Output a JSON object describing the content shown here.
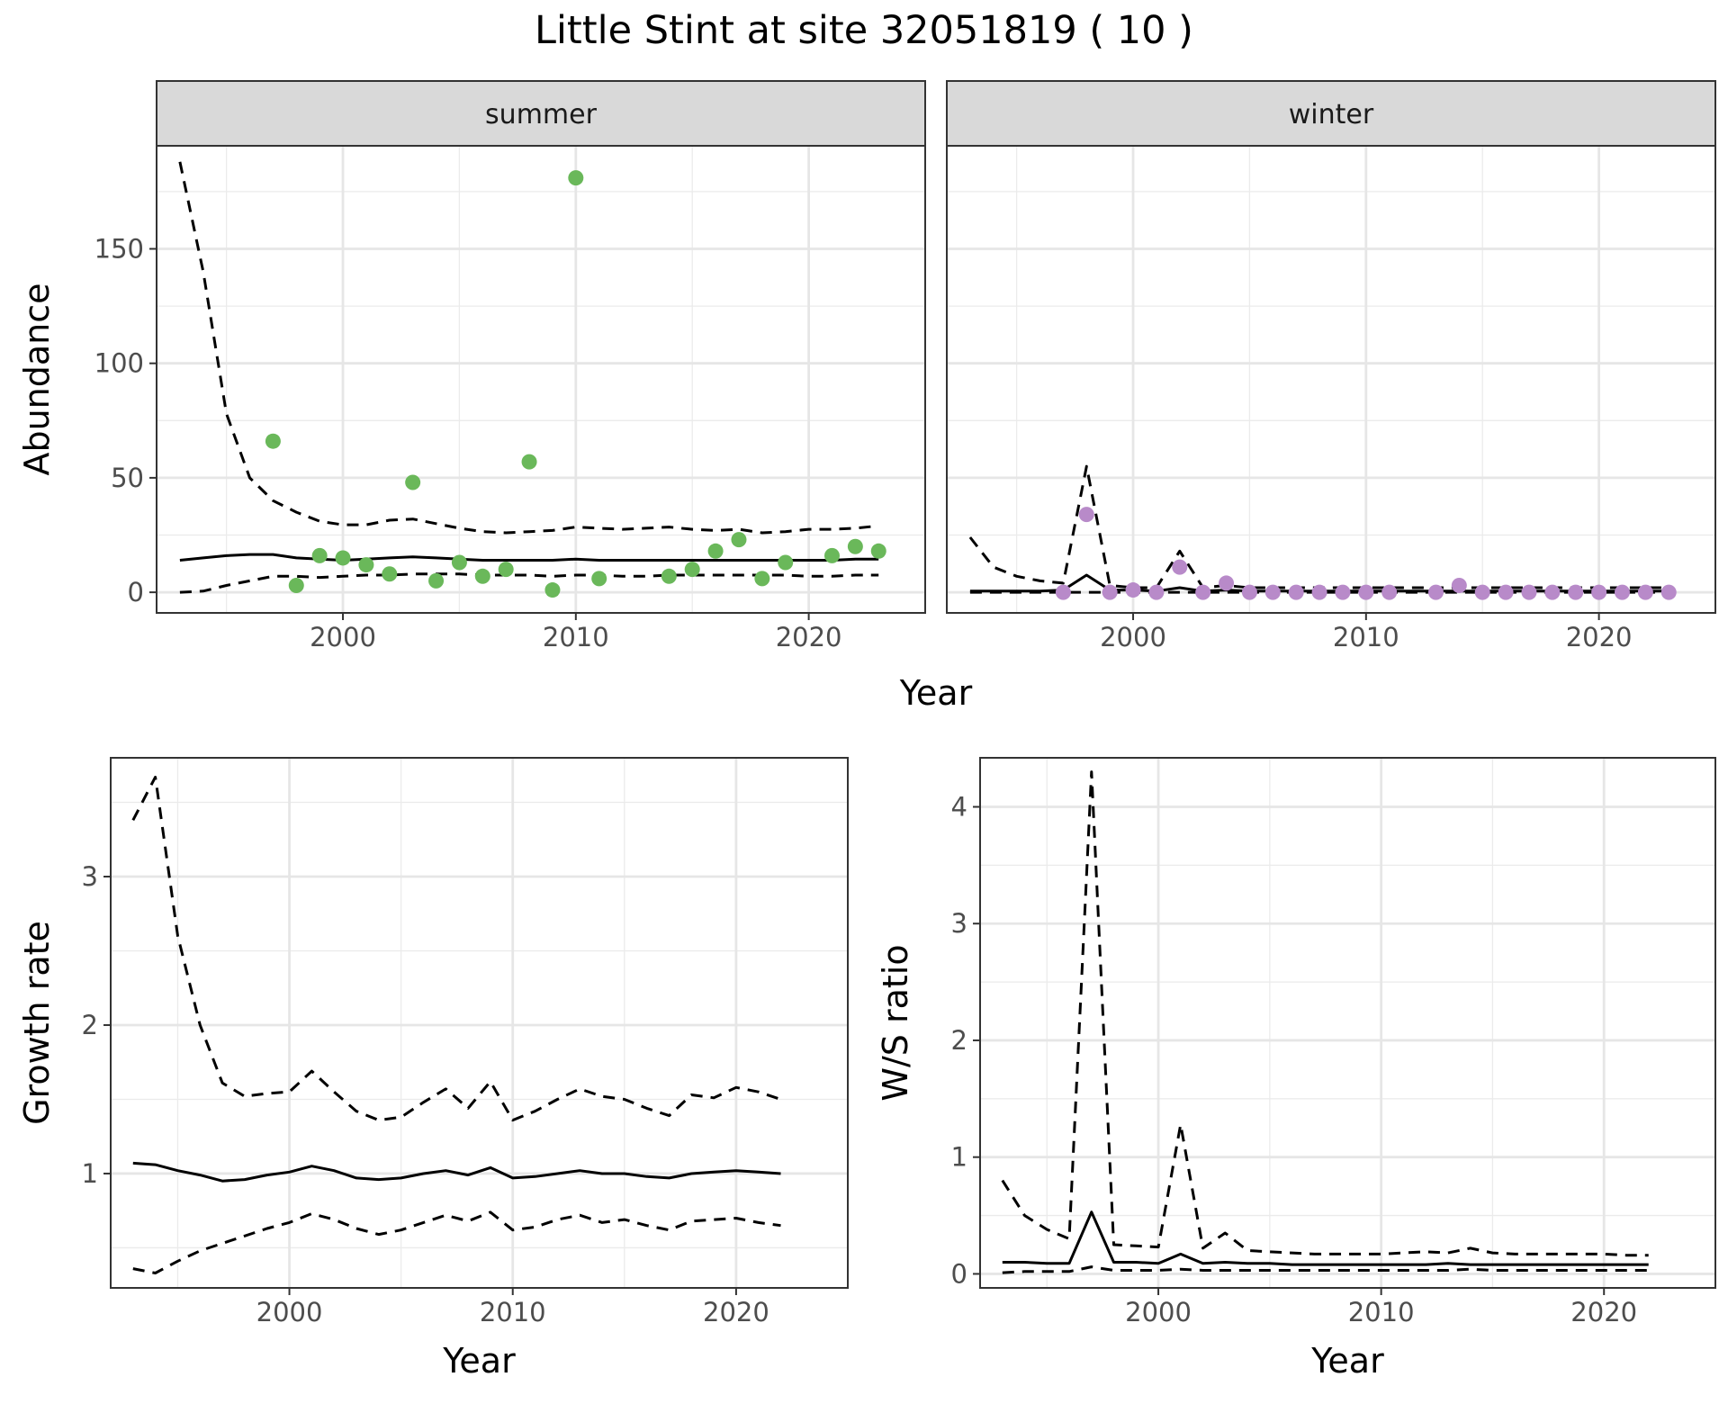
{
  "figure": {
    "title": "Little Stint at site 32051819 ( 10 )"
  },
  "chart_data": [
    {
      "type": "line",
      "panel": "summer",
      "facet_label": "summer",
      "xlabel": "Year",
      "ylabel": "Abundance",
      "xlim": [
        1992,
        2025
      ],
      "ylim": [
        -9,
        195
      ],
      "xticks": [
        2000,
        2010,
        2020
      ],
      "yticks": [
        0,
        50,
        100,
        150
      ],
      "grid": true,
      "point_color": "#6ab85a",
      "x": [
        1993,
        1994,
        1995,
        1996,
        1997,
        1998,
        1999,
        2000,
        2001,
        2002,
        2003,
        2004,
        2005,
        2006,
        2007,
        2008,
        2009,
        2010,
        2011,
        2012,
        2013,
        2014,
        2015,
        2016,
        2017,
        2018,
        2019,
        2020,
        2021,
        2022,
        2023
      ],
      "series": [
        {
          "style": "solid",
          "values": [
            14,
            15,
            16,
            16.5,
            16.5,
            15,
            14.5,
            14,
            14.5,
            15,
            15.5,
            15,
            14.5,
            14,
            14,
            14,
            14,
            14.5,
            14,
            14,
            14,
            14,
            14,
            14,
            14,
            14,
            14,
            14,
            14,
            14.5,
            14.5
          ]
        },
        {
          "style": "dashed",
          "values": [
            188,
            140,
            78,
            50,
            40,
            35,
            31,
            29.5,
            29.5,
            31.5,
            32,
            30,
            28,
            26.5,
            26,
            26.5,
            27,
            28.5,
            28,
            27.5,
            28,
            28.5,
            27.5,
            27,
            27.5,
            26,
            26.5,
            27.5,
            27.5,
            28,
            29
          ]
        },
        {
          "style": "dashed",
          "values": [
            0,
            0.5,
            3,
            5,
            7,
            7,
            6.5,
            7,
            7.5,
            7.5,
            8,
            8,
            8,
            7.5,
            7.5,
            7.5,
            7,
            7.5,
            7.5,
            7,
            7,
            7.5,
            7.5,
            7.5,
            7.5,
            7.5,
            7.5,
            7,
            7,
            7.5,
            7.5
          ]
        }
      ],
      "points": [
        {
          "x": 1997,
          "y": 66
        },
        {
          "x": 1998,
          "y": 3
        },
        {
          "x": 1999,
          "y": 16
        },
        {
          "x": 2000,
          "y": 15
        },
        {
          "x": 2001,
          "y": 12
        },
        {
          "x": 2002,
          "y": 8
        },
        {
          "x": 2003,
          "y": 48
        },
        {
          "x": 2004,
          "y": 5
        },
        {
          "x": 2005,
          "y": 13
        },
        {
          "x": 2006,
          "y": 7
        },
        {
          "x": 2007,
          "y": 10
        },
        {
          "x": 2008,
          "y": 57
        },
        {
          "x": 2009,
          "y": 1
        },
        {
          "x": 2010,
          "y": 181
        },
        {
          "x": 2011,
          "y": 6
        },
        {
          "x": 2014,
          "y": 7
        },
        {
          "x": 2015,
          "y": 10
        },
        {
          "x": 2016,
          "y": 18
        },
        {
          "x": 2017,
          "y": 23
        },
        {
          "x": 2018,
          "y": 6
        },
        {
          "x": 2019,
          "y": 13
        },
        {
          "x": 2021,
          "y": 16
        },
        {
          "x": 2022,
          "y": 20
        },
        {
          "x": 2023,
          "y": 18
        }
      ]
    },
    {
      "type": "line",
      "panel": "winter",
      "facet_label": "winter",
      "xlabel": "Year",
      "ylabel": "Abundance",
      "xlim": [
        1992,
        2025
      ],
      "ylim": [
        -9,
        195
      ],
      "xticks": [
        2000,
        2010,
        2020
      ],
      "yticks": [
        0,
        50,
        100,
        150
      ],
      "grid": true,
      "point_color": "#b88ac9",
      "x": [
        1993,
        1994,
        1995,
        1996,
        1997,
        1998,
        1999,
        2000,
        2001,
        2002,
        2003,
        2004,
        2005,
        2006,
        2007,
        2008,
        2009,
        2010,
        2011,
        2012,
        2013,
        2014,
        2015,
        2016,
        2017,
        2018,
        2019,
        2020,
        2021,
        2022,
        2023
      ],
      "series": [
        {
          "style": "solid",
          "values": [
            0.5,
            0.5,
            0.5,
            0.5,
            1,
            7.5,
            1,
            1,
            0.5,
            2,
            0.5,
            1,
            0.5,
            0.5,
            0.5,
            0.5,
            0.5,
            0.5,
            0.5,
            0.5,
            0.5,
            0.5,
            0.5,
            0.5,
            0.5,
            0.5,
            0.5,
            0.5,
            0.5,
            0.5,
            0.5
          ]
        },
        {
          "style": "dashed",
          "values": [
            24,
            11,
            7,
            5,
            4,
            55,
            3,
            2,
            2,
            18,
            2,
            3,
            2,
            2,
            2,
            2,
            2,
            2,
            2,
            2,
            2,
            2,
            2,
            2,
            2,
            2,
            2,
            2,
            2,
            2,
            2
          ]
        },
        {
          "style": "dashed",
          "values": [
            0,
            0,
            0,
            0,
            0,
            0,
            0,
            0,
            0,
            0,
            0,
            0,
            0,
            0,
            0,
            0,
            0,
            0,
            0,
            0,
            0,
            0,
            0,
            0,
            0,
            0,
            0,
            0,
            0,
            0,
            0
          ]
        }
      ],
      "points": [
        {
          "x": 1997,
          "y": 0
        },
        {
          "x": 1998,
          "y": 34
        },
        {
          "x": 1999,
          "y": 0
        },
        {
          "x": 2000,
          "y": 1
        },
        {
          "x": 2001,
          "y": 0
        },
        {
          "x": 2002,
          "y": 11
        },
        {
          "x": 2003,
          "y": 0
        },
        {
          "x": 2004,
          "y": 4
        },
        {
          "x": 2005,
          "y": 0
        },
        {
          "x": 2006,
          "y": 0
        },
        {
          "x": 2007,
          "y": 0
        },
        {
          "x": 2008,
          "y": 0
        },
        {
          "x": 2009,
          "y": 0
        },
        {
          "x": 2010,
          "y": 0
        },
        {
          "x": 2011,
          "y": 0
        },
        {
          "x": 2013,
          "y": 0
        },
        {
          "x": 2014,
          "y": 3
        },
        {
          "x": 2015,
          "y": 0
        },
        {
          "x": 2016,
          "y": 0
        },
        {
          "x": 2017,
          "y": 0
        },
        {
          "x": 2018,
          "y": 0
        },
        {
          "x": 2019,
          "y": 0
        },
        {
          "x": 2020,
          "y": 0
        },
        {
          "x": 2021,
          "y": 0
        },
        {
          "x": 2022,
          "y": 0
        },
        {
          "x": 2023,
          "y": 0
        }
      ]
    },
    {
      "type": "line",
      "panel": "growth",
      "xlabel": "Year",
      "ylabel": "Growth rate",
      "xlim": [
        1992,
        2025
      ],
      "ylim": [
        0.23,
        3.8
      ],
      "xticks": [
        2000,
        2010,
        2020
      ],
      "yticks": [
        1,
        2,
        3
      ],
      "grid": true,
      "x": [
        1993,
        1994,
        1995,
        1996,
        1997,
        1998,
        1999,
        2000,
        2001,
        2002,
        2003,
        2004,
        2005,
        2006,
        2007,
        2008,
        2009,
        2010,
        2011,
        2012,
        2013,
        2014,
        2015,
        2016,
        2017,
        2018,
        2019,
        2020,
        2021,
        2022
      ],
      "series": [
        {
          "style": "solid",
          "values": [
            1.07,
            1.06,
            1.02,
            0.99,
            0.95,
            0.96,
            0.99,
            1.01,
            1.05,
            1.02,
            0.97,
            0.96,
            0.97,
            1.0,
            1.02,
            0.99,
            1.04,
            0.97,
            0.98,
            1.0,
            1.02,
            1.0,
            1.0,
            0.98,
            0.97,
            1.0,
            1.01,
            1.02,
            1.01,
            1.0
          ]
        },
        {
          "style": "dashed",
          "values": [
            3.38,
            3.67,
            2.6,
            2.0,
            1.61,
            1.52,
            1.54,
            1.55,
            1.69,
            1.55,
            1.42,
            1.36,
            1.38,
            1.48,
            1.57,
            1.44,
            1.62,
            1.36,
            1.42,
            1.5,
            1.57,
            1.52,
            1.5,
            1.44,
            1.39,
            1.53,
            1.51,
            1.58,
            1.55,
            1.5
          ]
        },
        {
          "style": "dashed",
          "values": [
            0.36,
            0.33,
            0.41,
            0.48,
            0.53,
            0.58,
            0.63,
            0.67,
            0.73,
            0.69,
            0.63,
            0.59,
            0.62,
            0.67,
            0.72,
            0.68,
            0.74,
            0.62,
            0.64,
            0.69,
            0.72,
            0.67,
            0.69,
            0.65,
            0.62,
            0.68,
            0.69,
            0.7,
            0.67,
            0.65
          ]
        }
      ]
    },
    {
      "type": "line",
      "panel": "ratio",
      "xlabel": "Year",
      "ylabel": "W/S ratio",
      "xlim": [
        1992,
        2025
      ],
      "ylim": [
        -0.12,
        4.42
      ],
      "xticks": [
        2000,
        2010,
        2020
      ],
      "yticks": [
        0,
        1,
        2,
        3,
        4
      ],
      "grid": true,
      "x": [
        1993,
        1994,
        1995,
        1996,
        1997,
        1998,
        1999,
        2000,
        2001,
        2002,
        2003,
        2004,
        2005,
        2006,
        2007,
        2008,
        2009,
        2010,
        2011,
        2012,
        2013,
        2014,
        2015,
        2016,
        2017,
        2018,
        2019,
        2020,
        2021,
        2022
      ],
      "series": [
        {
          "style": "solid",
          "values": [
            0.1,
            0.1,
            0.09,
            0.09,
            0.53,
            0.1,
            0.1,
            0.09,
            0.17,
            0.09,
            0.1,
            0.09,
            0.09,
            0.08,
            0.08,
            0.08,
            0.08,
            0.08,
            0.08,
            0.08,
            0.09,
            0.08,
            0.08,
            0.08,
            0.08,
            0.08,
            0.08,
            0.08,
            0.08,
            0.08
          ]
        },
        {
          "style": "dashed",
          "values": [
            0.8,
            0.5,
            0.38,
            0.3,
            4.3,
            0.25,
            0.24,
            0.23,
            1.28,
            0.22,
            0.35,
            0.2,
            0.19,
            0.18,
            0.17,
            0.17,
            0.17,
            0.17,
            0.18,
            0.19,
            0.18,
            0.22,
            0.18,
            0.17,
            0.17,
            0.17,
            0.17,
            0.17,
            0.16,
            0.16
          ]
        },
        {
          "style": "dashed",
          "values": [
            0.01,
            0.02,
            0.02,
            0.02,
            0.06,
            0.03,
            0.03,
            0.03,
            0.04,
            0.03,
            0.03,
            0.03,
            0.03,
            0.03,
            0.03,
            0.03,
            0.03,
            0.03,
            0.03,
            0.03,
            0.03,
            0.04,
            0.03,
            0.03,
            0.03,
            0.03,
            0.03,
            0.03,
            0.03,
            0.03
          ]
        }
      ]
    }
  ]
}
